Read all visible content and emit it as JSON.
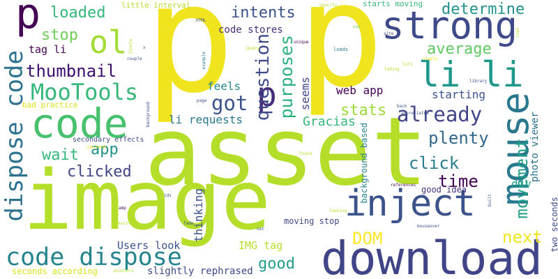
{
  "palette": [
    "#fde725",
    "#b5de2b",
    "#6ece58",
    "#35b779",
    "#1f9e89",
    "#26828e",
    "#31688e",
    "#3e4989",
    "#482878",
    "#440154"
  ],
  "words": [
    {
      "t": "p",
      "c": "#f0e41e"
    },
    {
      "t": "p",
      "c": "#f0e41e"
    },
    {
      "t": "asset",
      "c": "#b5de2b"
    },
    {
      "t": "image",
      "c": "#b5de2b"
    },
    {
      "t": "download",
      "c": "#414487"
    },
    {
      "t": "code",
      "c": "#48c16e"
    },
    {
      "t": "inject",
      "c": "#3b528b"
    },
    {
      "t": "mouse",
      "c": "#2a788e"
    },
    {
      "t": "strong",
      "c": "#3e4989"
    },
    {
      "t": "code dispose",
      "c": "#25848e"
    },
    {
      "t": "dispose code",
      "c": "#2c718e"
    },
    {
      "t": "li li",
      "c": "#1f988b"
    },
    {
      "t": "p",
      "c": "#440154"
    },
    {
      "t": "ol",
      "c": "#a5db36"
    },
    {
      "t": "p",
      "c": "#472c7a"
    },
    {
      "t": "MooTools",
      "c": "#35b779"
    },
    {
      "t": "already",
      "c": "#414487"
    },
    {
      "t": "thumbnail",
      "c": "#3b0f70"
    },
    {
      "t": "got",
      "c": "#3b528b"
    },
    {
      "t": "question",
      "c": "#3e4989"
    },
    {
      "t": "purposes",
      "c": "#2db27d"
    },
    {
      "t": "stats",
      "c": "#a0da39"
    },
    {
      "t": "plenty",
      "c": "#31688e"
    },
    {
      "t": "movement",
      "c": "#1f9e89"
    },
    {
      "t": "click",
      "c": "#287d8e"
    },
    {
      "t": "time",
      "c": "#440154"
    },
    {
      "t": "next",
      "c": "#f1e51d"
    },
    {
      "t": "DOM",
      "c": "#fde725"
    },
    {
      "t": "clicked",
      "c": "#414487"
    },
    {
      "t": "wait",
      "c": "#35b779"
    },
    {
      "t": "app",
      "c": "#21918c"
    },
    {
      "t": "stop",
      "c": "#6ece58"
    },
    {
      "t": "loaded",
      "c": "#35b779"
    },
    {
      "t": "intents",
      "c": "#3b528b"
    },
    {
      "t": "determine",
      "c": "#21918c"
    },
    {
      "t": "average",
      "c": "#5ec962"
    },
    {
      "t": "good",
      "c": "#1f9e89"
    },
    {
      "t": "Gracias",
      "c": "#35b779"
    },
    {
      "t": "web app",
      "c": "#440154"
    },
    {
      "t": "starting",
      "c": "#3b528b"
    },
    {
      "t": "feels",
      "c": "#25858e"
    },
    {
      "t": "seems",
      "c": "#404688"
    },
    {
      "t": "li requests",
      "c": "#2a788e"
    },
    {
      "t": "thinking",
      "c": "#3b528b"
    },
    {
      "t": "div",
      "c": "#1f9e89"
    },
    {
      "t": "photo viewer",
      "c": "#2c728e"
    },
    {
      "t": "Users look",
      "c": "#3b528b"
    },
    {
      "t": "IMG tag",
      "c": "#b5de2b"
    },
    {
      "t": "slightly rephrased",
      "c": "#3e4989"
    },
    {
      "t": "seconds according",
      "c": "#d8e219"
    },
    {
      "t": "tag li",
      "c": "#440154"
    },
    {
      "t": "code stores",
      "c": "#472d7b"
    },
    {
      "t": "moving stop",
      "c": "#3e4989"
    },
    {
      "t": "good idea",
      "c": "#46327e"
    },
    {
      "t": "two seconds",
      "c": "#3e4989"
    },
    {
      "t": "background based",
      "c": "#26828e"
    },
    {
      "t": "little interval",
      "c": "#b5de2b"
    },
    {
      "t": "starts moving",
      "c": "#35b779"
    },
    {
      "t": "bad practice",
      "c": "#d8e219"
    },
    {
      "t": "secondary effects",
      "c": "#3e4989"
    },
    {
      "t": "content",
      "c": "#fde725"
    },
    {
      "t": "HTML",
      "c": "#3b528b"
    },
    {
      "t": "Josela",
      "c": "#b5de2b"
    },
    {
      "t": "example",
      "c": "#2a788e"
    },
    {
      "t": "jQuery",
      "c": "#b5de2b"
    },
    {
      "t": "unique",
      "c": "#440154"
    },
    {
      "t": "opacity",
      "c": "#b5de2b"
    },
    {
      "t": "say",
      "c": "#6ece58"
    },
    {
      "t": "site",
      "c": "#3e4989"
    },
    {
      "t": "load",
      "c": "#b5de2b"
    },
    {
      "t": "loads",
      "c": "#2a788e"
    },
    {
      "t": "simple",
      "c": "#fde725"
    },
    {
      "t": "lots",
      "c": "#b5de2b"
    },
    {
      "t": "fading",
      "c": "#b5de2b"
    },
    {
      "t": "library",
      "c": "#3b528b"
    },
    {
      "t": "appreciated",
      "c": "#3b528b"
    },
    {
      "t": "back",
      "c": "#3b528b"
    },
    {
      "t": "page",
      "c": "#3b528b"
    },
    {
      "t": "found",
      "c": "#b5de2b"
    },
    {
      "t": "couple",
      "c": "#3b528b"
    },
    {
      "t": "ids",
      "c": "#3b528b"
    },
    {
      "t": "fade",
      "c": "#3b528b"
    },
    {
      "t": "much",
      "c": "#b5de2b"
    },
    {
      "t": "amp",
      "c": "#440154"
    },
    {
      "t": "net",
      "c": "#3b528b"
    },
    {
      "t": "go",
      "c": "#b5de2b"
    },
    {
      "t": "pointers",
      "c": "#b5de2b"
    },
    {
      "t": "references",
      "c": "#440154"
    },
    {
      "t": "built",
      "c": "#3b528b"
    },
    {
      "t": "looking",
      "c": "#b5de2b"
    },
    {
      "t": "mouseover",
      "c": "#3b528b"
    },
    {
      "t": "background",
      "c": "#3e4989"
    },
    {
      "t": "x",
      "c": "#3b528b"
    }
  ]
}
